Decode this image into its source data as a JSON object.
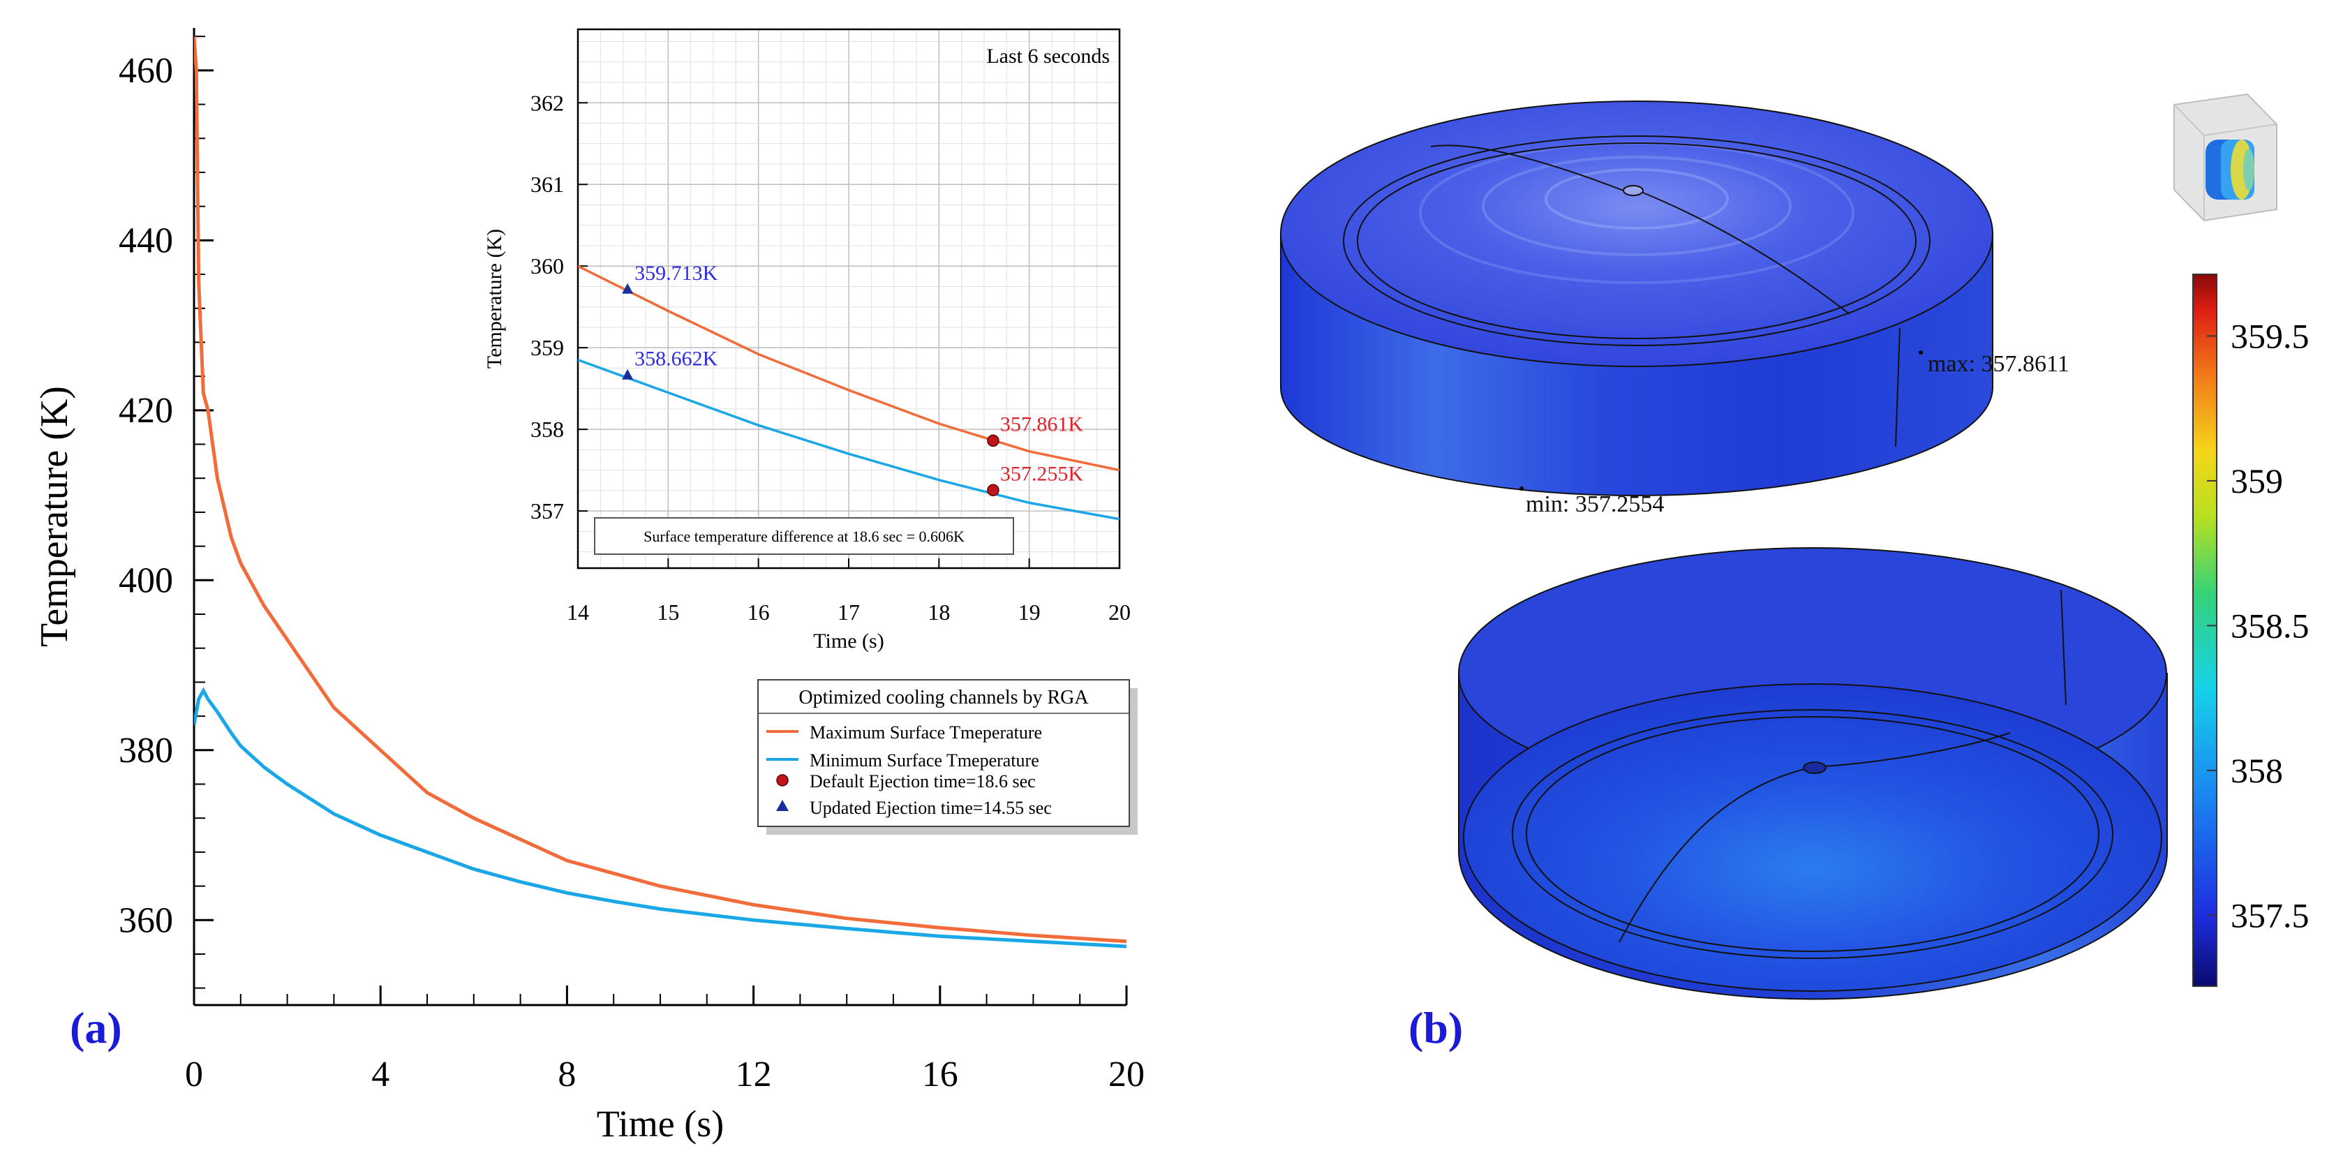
{
  "panels": {
    "a_label": "(a)",
    "b_label": "(b)"
  },
  "chart_data": [
    {
      "type": "line",
      "panel": "(a)",
      "xlabel": "Time (s)",
      "ylabel": "Temperature (K)",
      "xlim": [
        0,
        20
      ],
      "ylim": [
        350,
        465
      ],
      "xticks": [
        0,
        4,
        8,
        12,
        16,
        20
      ],
      "yticks": [
        360,
        380,
        400,
        420,
        440,
        460
      ],
      "grid": false,
      "legend_position": "center-right",
      "legend_title": "Optimized cooling channels by RGA",
      "series": [
        {
          "name": "Maximum Surface Tmeperature",
          "color": "#F26B3A",
          "x": [
            0,
            0.05,
            0.1,
            0.2,
            0.3,
            0.5,
            0.8,
            1.0,
            1.5,
            2,
            3,
            4,
            5,
            6,
            7,
            8,
            9,
            10,
            12,
            14,
            16,
            18,
            20
          ],
          "y": [
            464,
            460,
            435,
            422,
            420,
            412,
            405,
            402,
            397,
            393,
            385,
            380,
            375,
            372,
            369.5,
            367,
            365.5,
            364,
            361.8,
            360.2,
            359.1,
            358.2,
            357.5
          ]
        },
        {
          "name": "Minimum Surface Tmeperature",
          "color": "#1AA7E8",
          "x": [
            0,
            0.1,
            0.2,
            0.3,
            0.5,
            0.8,
            1.0,
            1.5,
            2,
            3,
            4,
            5,
            6,
            7,
            8,
            9,
            10,
            12,
            14,
            16,
            18,
            20
          ],
          "y": [
            383,
            386,
            387,
            386,
            384.5,
            382,
            380.5,
            378,
            376,
            372.5,
            370,
            368,
            366,
            364.5,
            363.2,
            362.2,
            361.3,
            360,
            359,
            358.1,
            357.5,
            356.9
          ]
        },
        {
          "name": "Default Ejection time=18.6 sec",
          "marker": "circle",
          "color": "#C0141C",
          "x": [
            18.6,
            18.6
          ],
          "y": [
            357.861,
            357.255
          ]
        },
        {
          "name": "Updated Ejection time=14.55 sec",
          "marker": "triangle",
          "color": "#1A2E9E",
          "x": [
            14.55,
            14.55
          ],
          "y": [
            359.713,
            358.662
          ]
        }
      ]
    },
    {
      "type": "line",
      "panel": "inset",
      "title": "Last 6 seconds",
      "xlabel": "Time (s)",
      "ylabel": "Temperature (K)",
      "xlim": [
        14,
        20
      ],
      "ylim": [
        356.3,
        362.9
      ],
      "xticks": [
        14,
        15,
        16,
        17,
        18,
        19,
        20
      ],
      "yticks": [
        357,
        358,
        359,
        360,
        361,
        362
      ],
      "grid": true,
      "series": [
        {
          "name": "Maximum Surface Tmeperature",
          "color": "#F26B3A",
          "x": [
            14,
            15,
            16,
            17,
            18,
            19,
            20
          ],
          "y": [
            360.0,
            359.45,
            358.92,
            358.48,
            358.07,
            357.73,
            357.5
          ]
        },
        {
          "name": "Minimum Surface Tmeperature",
          "color": "#1AA7E8",
          "x": [
            14,
            15,
            16,
            17,
            18,
            19,
            20
          ],
          "y": [
            358.85,
            358.45,
            358.05,
            357.7,
            357.38,
            357.1,
            356.9
          ]
        }
      ],
      "annotations": [
        {
          "text": "359.713K",
          "x": 14.55,
          "y": 359.713,
          "color": "#2C2CE0",
          "marker": "triangle"
        },
        {
          "text": "358.662K",
          "x": 14.55,
          "y": 358.662,
          "color": "#2C2CE0",
          "marker": "triangle"
        },
        {
          "text": "357.861K",
          "x": 18.6,
          "y": 357.861,
          "color": "#E0202A",
          "marker": "circle"
        },
        {
          "text": "357.255K",
          "x": 18.6,
          "y": 357.255,
          "color": "#E0202A",
          "marker": "circle"
        }
      ],
      "note": "Surface temperature difference at 18.6 sec = 0.606K"
    },
    {
      "type": "heatmap",
      "panel": "(b)",
      "colorbar_range": [
        357.255,
        359.713
      ],
      "colorbar_ticks": [
        359.5,
        359,
        358.5,
        358,
        357.5
      ],
      "annotations": [
        "max: 357.8611",
        "min: 357.2554"
      ]
    }
  ]
}
